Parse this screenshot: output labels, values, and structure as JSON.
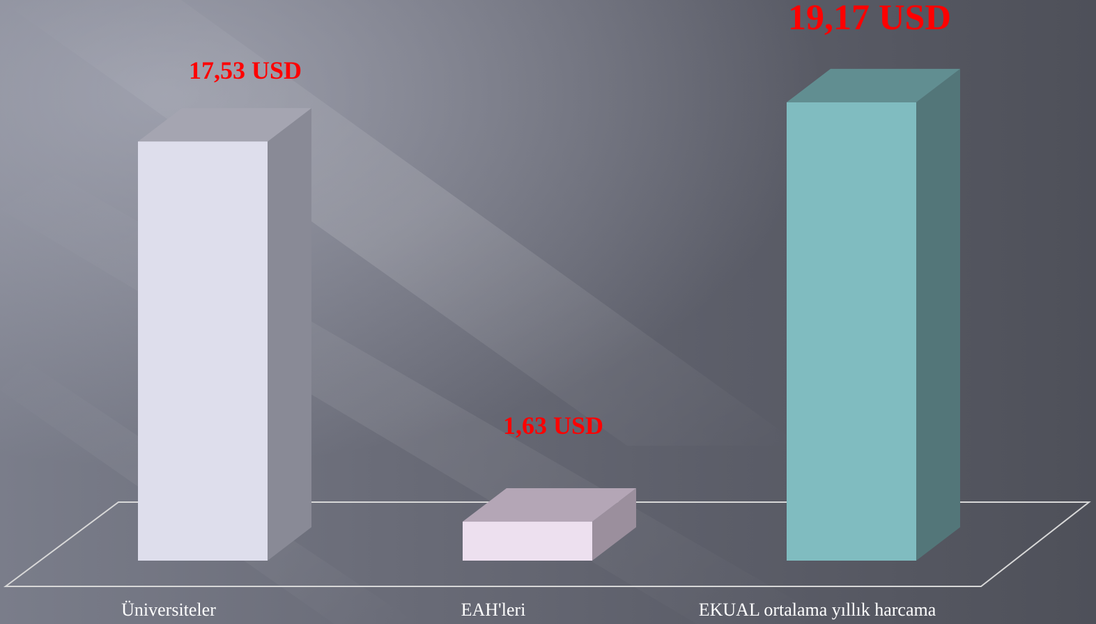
{
  "chart_data": {
    "type": "bar",
    "style": "3d-column",
    "categories": [
      "Üniversiteler",
      "EAH'leri",
      "EKUAL ortalama yıllık harcama"
    ],
    "values": [
      17.53,
      1.63,
      19.17
    ],
    "data_labels": [
      "17,53 USD",
      "1,63 USD",
      "19,17 USD"
    ],
    "unit": "USD",
    "ylim": [
      0,
      20
    ],
    "grid": false,
    "legend": "none",
    "bar_colors": {
      "front": [
        "#dedeec",
        "#ede0ef",
        "#80bcc0"
      ],
      "side": [
        "#898a96",
        "#9b8f9d",
        "#537679"
      ],
      "top": [
        "#a5a5b1",
        "#b4a6b6",
        "#618e91"
      ]
    },
    "label_color": "#ff0000",
    "axis_text_color": "#ffffff",
    "floor_color": "#d8d8d8"
  }
}
